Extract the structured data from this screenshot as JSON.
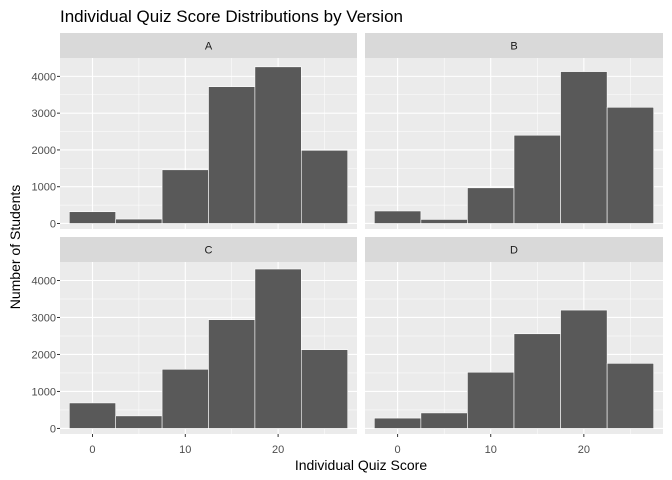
{
  "chart_data": {
    "type": "bar",
    "subtype": "faceted-histogram",
    "title": "Individual Quiz Score Distributions by Version",
    "xlabel": "Individual Quiz Score",
    "ylabel": "Number of Students",
    "xlim": [
      -3.5,
      28.5
    ],
    "ylim": [
      -150,
      4500
    ],
    "x_ticks": [
      0,
      10,
      20
    ],
    "y_ticks": [
      0,
      1000,
      2000,
      3000,
      4000
    ],
    "bin_edges": [
      -2.5,
      2.5,
      7.5,
      12.5,
      17.5,
      22.5,
      27.5
    ],
    "bar_fill": "#595959",
    "bar_outline": "#ffffff",
    "panel_background": "#ebebeb",
    "strip_background": "#d9d9d9",
    "gridline_color": "#ffffff",
    "facets": [
      {
        "name": "A",
        "values": [
          320,
          120,
          1460,
          3720,
          4260,
          1990
        ]
      },
      {
        "name": "B",
        "values": [
          340,
          110,
          970,
          2400,
          4130,
          3160
        ]
      },
      {
        "name": "C",
        "values": [
          690,
          340,
          1600,
          2940,
          4310,
          2130
        ]
      },
      {
        "name": "D",
        "values": [
          280,
          420,
          1520,
          2560,
          3200,
          1760
        ]
      }
    ]
  }
}
